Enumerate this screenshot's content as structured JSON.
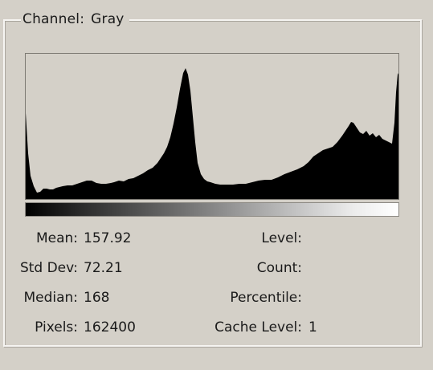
{
  "channel": {
    "label": "Channel:",
    "value": "Gray"
  },
  "stats_left": [
    {
      "label": "Mean:",
      "value": "157.92"
    },
    {
      "label": "Std Dev:",
      "value": "72.21"
    },
    {
      "label": "Median:",
      "value": "168"
    },
    {
      "label": "Pixels:",
      "value": "162400"
    }
  ],
  "stats_right": [
    {
      "label": "Level:",
      "value": ""
    },
    {
      "label": "Count:",
      "value": ""
    },
    {
      "label": "Percentile:",
      "value": ""
    },
    {
      "label": "Cache Level:",
      "value": "1"
    }
  ],
  "colors": {
    "background": "#d4d0c8",
    "histogram": "#000000"
  }
}
